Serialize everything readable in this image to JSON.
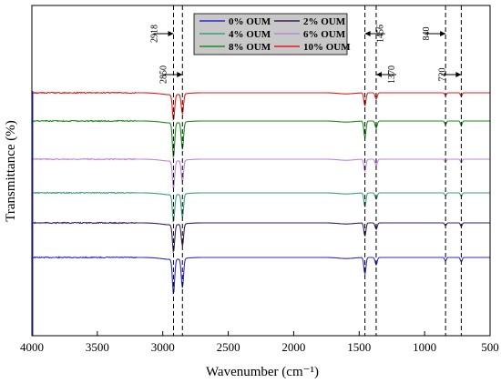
{
  "chart_data": {
    "type": "line",
    "xlabel": "Wavenumber (cm⁻¹)",
    "ylabel": "Transmittance (%)",
    "xlim": [
      4000,
      500
    ],
    "x_ticks": [
      4000,
      3500,
      3000,
      2500,
      2000,
      1500,
      1000,
      500
    ],
    "x_reversed": true,
    "grid": false,
    "legend_position": "top-center",
    "series": [
      {
        "name": "0% OUM",
        "color": "#2b2bd0",
        "baseline": 283,
        "dips": [
          [
            2918,
            38
          ],
          [
            2850,
            32
          ],
          [
            1456,
            18
          ],
          [
            1370,
            8
          ],
          [
            840,
            4
          ],
          [
            720,
            5
          ]
        ]
      },
      {
        "name": "2% OUM",
        "color": "#3a1e5a",
        "baseline": 245,
        "dips": [
          [
            2918,
            30
          ],
          [
            2850,
            24
          ],
          [
            1456,
            14
          ],
          [
            1370,
            7
          ],
          [
            840,
            3
          ],
          [
            720,
            4
          ]
        ]
      },
      {
        "name": "4% OUM",
        "color": "#3aa078",
        "baseline": 212,
        "dips": [
          [
            2918,
            30
          ],
          [
            2850,
            26
          ],
          [
            1456,
            15
          ],
          [
            1370,
            7
          ],
          [
            840,
            3
          ],
          [
            720,
            4
          ]
        ]
      },
      {
        "name": "6% OUM",
        "color": "#b887d6",
        "baseline": 175,
        "dips": [
          [
            2918,
            30
          ],
          [
            2850,
            24
          ],
          [
            1456,
            13
          ],
          [
            1370,
            7
          ],
          [
            840,
            3
          ],
          [
            720,
            4
          ]
        ]
      },
      {
        "name": "8% OUM",
        "color": "#1e8a1e",
        "baseline": 133,
        "dips": [
          [
            2918,
            38
          ],
          [
            2850,
            30
          ],
          [
            1456,
            18
          ],
          [
            1370,
            8
          ],
          [
            840,
            4
          ],
          [
            720,
            5
          ]
        ]
      },
      {
        "name": "10% OUM",
        "color": "#e41a1c",
        "baseline": 102,
        "dips": [
          [
            2918,
            28
          ],
          [
            2850,
            22
          ],
          [
            1456,
            14
          ],
          [
            1370,
            7
          ],
          [
            840,
            3
          ],
          [
            720,
            4
          ]
        ]
      }
    ],
    "annotations": [
      {
        "label": "2918",
        "x": 2918
      },
      {
        "label": "2850",
        "x": 2850
      },
      {
        "label": "1456",
        "x": 1456
      },
      {
        "label": "1370",
        "x": 1370
      },
      {
        "label": "840",
        "x": 840
      },
      {
        "label": "720",
        "x": 720
      }
    ],
    "legend_bg": "#c8c8c8"
  }
}
